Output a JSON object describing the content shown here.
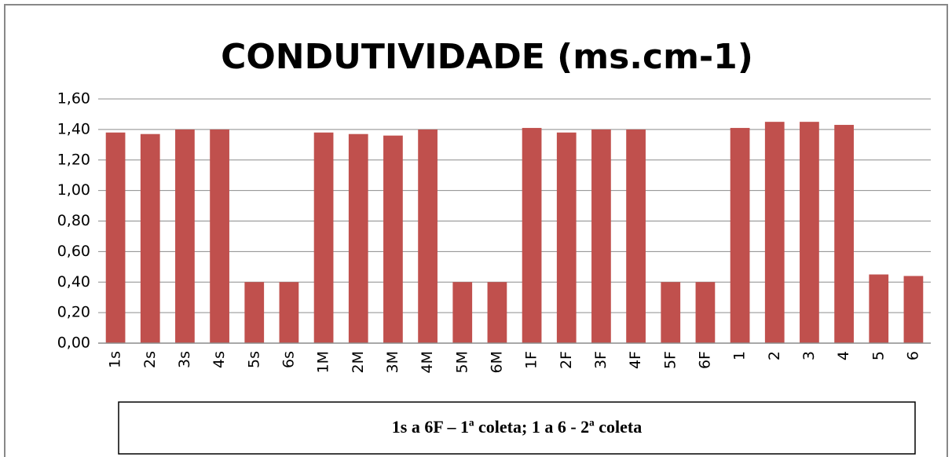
{
  "chart_data": {
    "type": "bar",
    "title": "CONDUTIVIDADE (ms.cm-1)",
    "categories": [
      "1s",
      "2s",
      "3s",
      "4s",
      "5s",
      "6s",
      "1M",
      "2M",
      "3M",
      "4M",
      "5M",
      "6M",
      "1F",
      "2F",
      "3F",
      "4F",
      "5F",
      "6F",
      "1",
      "2",
      "3",
      "4",
      "5",
      "6"
    ],
    "values": [
      1.38,
      1.37,
      1.4,
      1.4,
      0.4,
      0.4,
      1.38,
      1.37,
      1.36,
      1.4,
      0.4,
      0.4,
      1.41,
      1.38,
      1.4,
      1.4,
      0.4,
      0.4,
      1.41,
      1.45,
      1.45,
      1.43,
      0.45,
      0.44
    ],
    "color": "#c0504d",
    "ylim": [
      0,
      1.6
    ],
    "yticks": [
      {
        "value": 0,
        "label": "0,00"
      },
      {
        "value": 0.2,
        "label": "0,20"
      },
      {
        "value": 0.4,
        "label": "0,40"
      },
      {
        "value": 0.6,
        "label": "0,60"
      },
      {
        "value": 0.8,
        "label": "0,80"
      },
      {
        "value": 1.0,
        "label": "1,00"
      },
      {
        "value": 1.2,
        "label": "1,20"
      },
      {
        "value": 1.4,
        "label": "1,40"
      },
      {
        "value": 1.6,
        "label": "1,60"
      }
    ],
    "grid": true,
    "annotation": "1s a 6F – 1ª coleta; 1 a 6 - 2ª coleta"
  }
}
